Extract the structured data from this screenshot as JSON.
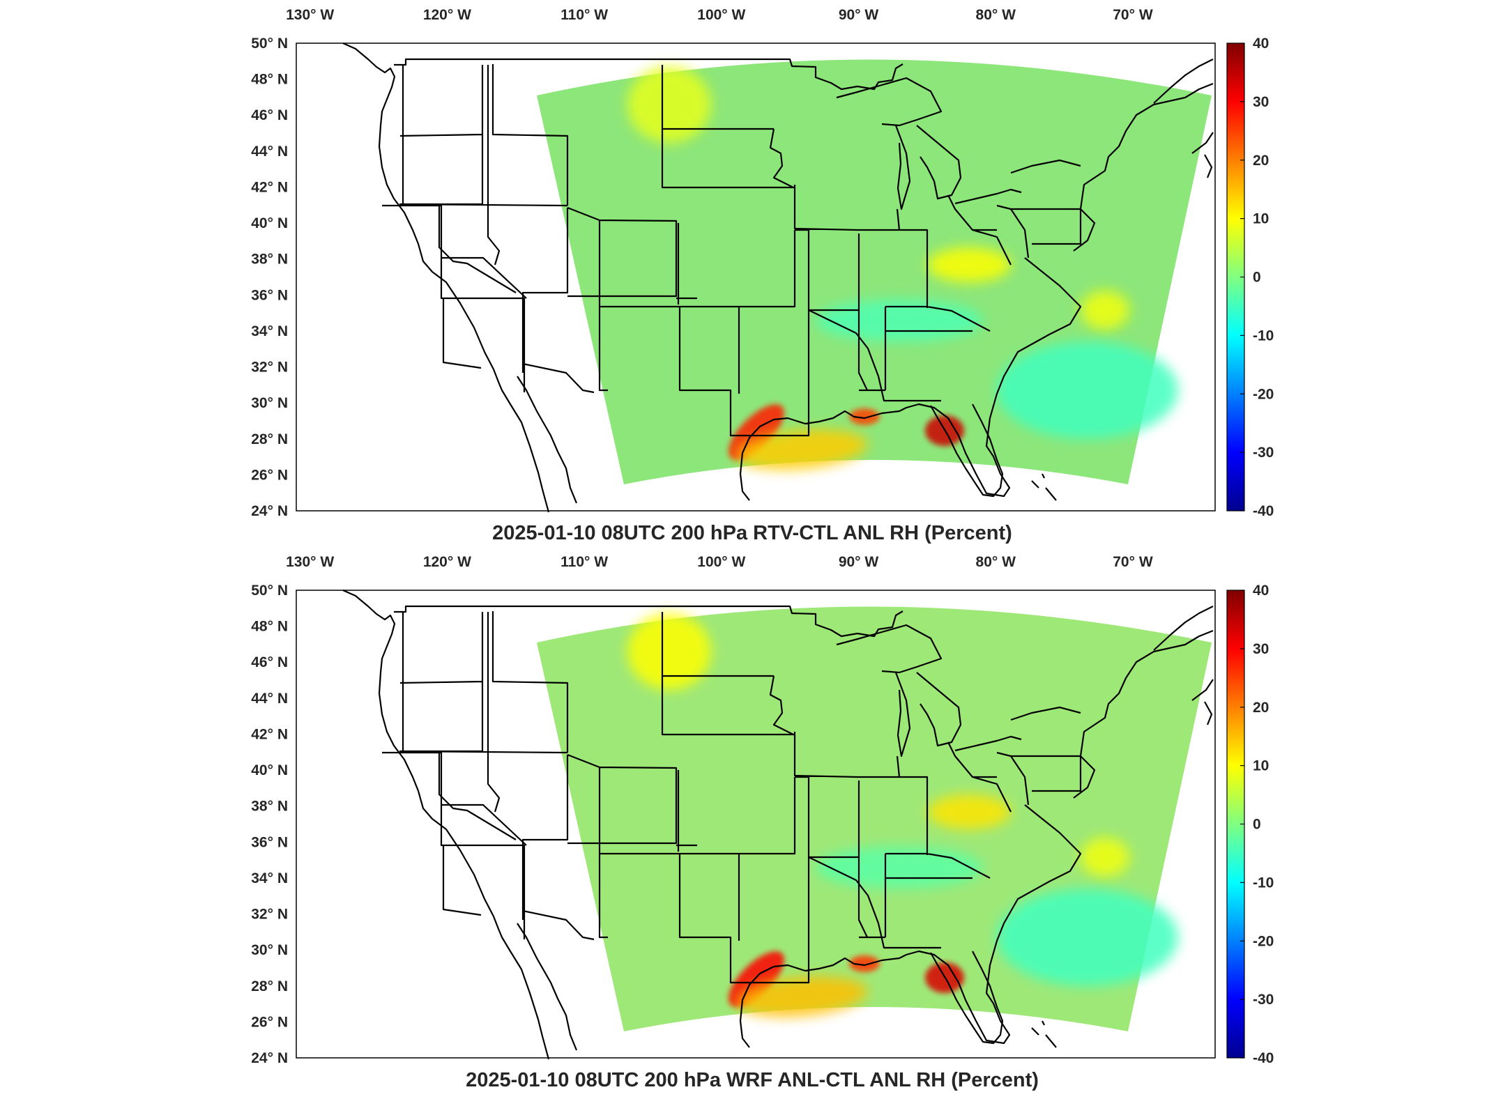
{
  "chart_data": [
    {
      "type": "heatmap",
      "title": "2025-01-10 08UTC 200 hPa RTV-CTL ANL RH (Percent)",
      "lon_ticks": [
        "130° W",
        "120° W",
        "110° W",
        "100° W",
        "90° W",
        "80° W",
        "70° W"
      ],
      "lat_ticks": [
        "50° N",
        "48° N",
        "46° N",
        "44° N",
        "42° N",
        "40° N",
        "38° N",
        "36° N",
        "34° N",
        "32° N",
        "30° N",
        "28° N",
        "26° N",
        "24° N"
      ],
      "lon_range": [
        -131,
        -64
      ],
      "lat_range": [
        24,
        50
      ],
      "colorbar": {
        "min": -40,
        "max": 40,
        "ticks": [
          "40",
          "30",
          "20",
          "10",
          "0",
          "-10",
          "-20",
          "-30",
          "-40"
        ],
        "colormap": "jet"
      },
      "background_value": 0,
      "features": [
        {
          "region": "South Texas coast / Gulf",
          "value": 28
        },
        {
          "region": "Northern Florida / Big Bend",
          "value": 34
        },
        {
          "region": "Mobile Bay area",
          "value": 25
        },
        {
          "region": "Western Gulf of Mexico",
          "value": 14
        },
        {
          "region": "Montana / Wyoming",
          "value": 8
        },
        {
          "region": "Off Carolina coast",
          "value": 9
        },
        {
          "region": "Ohio Valley",
          "value": 10
        },
        {
          "region": "Southern Appalachians",
          "value": -4
        },
        {
          "region": "Western Atlantic",
          "value": -5
        }
      ]
    },
    {
      "type": "heatmap",
      "title": "2025-01-10 08UTC 200 hPa WRF ANL-CTL ANL RH (Percent)",
      "lon_ticks": [
        "130° W",
        "120° W",
        "110° W",
        "100° W",
        "90° W",
        "80° W",
        "70° W"
      ],
      "lat_ticks": [
        "50° N",
        "48° N",
        "46° N",
        "44° N",
        "42° N",
        "40° N",
        "38° N",
        "36° N",
        "34° N",
        "32° N",
        "30° N",
        "28° N",
        "26° N",
        "24° N"
      ],
      "lon_range": [
        -131,
        -64
      ],
      "lat_range": [
        24,
        50
      ],
      "colorbar": {
        "min": -40,
        "max": 40,
        "ticks": [
          "40",
          "30",
          "20",
          "10",
          "0",
          "-10",
          "-20",
          "-30",
          "-40"
        ],
        "colormap": "jet"
      },
      "background_value": 2,
      "features": [
        {
          "region": "South Texas coast / Gulf",
          "value": 30
        },
        {
          "region": "Northern Florida / Big Bend",
          "value": 33
        },
        {
          "region": "Mobile Bay area",
          "value": 26
        },
        {
          "region": "Western Gulf of Mexico",
          "value": 15
        },
        {
          "region": "Montana / Wyoming",
          "value": 10
        },
        {
          "region": "Off Carolina coast",
          "value": 9
        },
        {
          "region": "Ohio Valley",
          "value": 12
        },
        {
          "region": "Southern Appalachians",
          "value": -3
        },
        {
          "region": "Western Atlantic",
          "value": -5
        }
      ]
    }
  ],
  "colors": {
    "frame": "#000000",
    "text": "#262626"
  }
}
